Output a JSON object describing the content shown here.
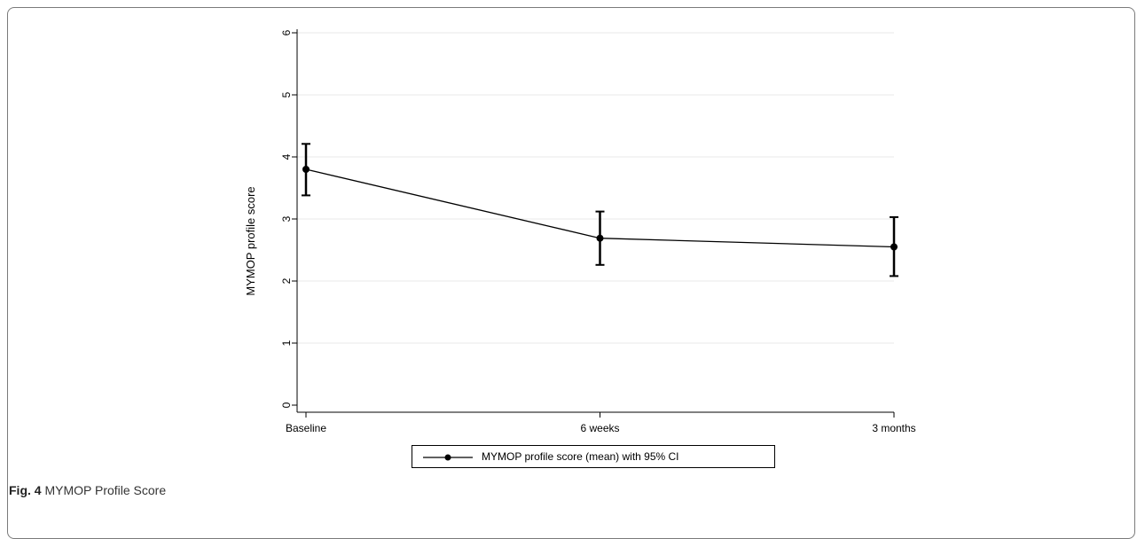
{
  "caption": {
    "label": "Fig. 4",
    "title": "MYMOP Profile Score"
  },
  "chart_data": {
    "type": "line",
    "categories": [
      "Baseline",
      "6 weeks",
      "3 months"
    ],
    "series": [
      {
        "name": "MYMOP profile score (mean) with 95% CI",
        "values": [
          3.8,
          2.69,
          2.55
        ],
        "ci_lower": [
          3.38,
          2.26,
          2.08
        ],
        "ci_upper": [
          4.21,
          3.12,
          3.03
        ]
      }
    ],
    "ylabel": "MYMOP profile score",
    "xlabel": "",
    "ylim": [
      0,
      6
    ],
    "yticks": [
      "0",
      "1",
      "2",
      "3",
      "4",
      "5",
      "6"
    ],
    "grid": true,
    "legend": "bottom",
    "colors": {
      "line": "#000000",
      "grid": "#e8e8e8"
    }
  }
}
